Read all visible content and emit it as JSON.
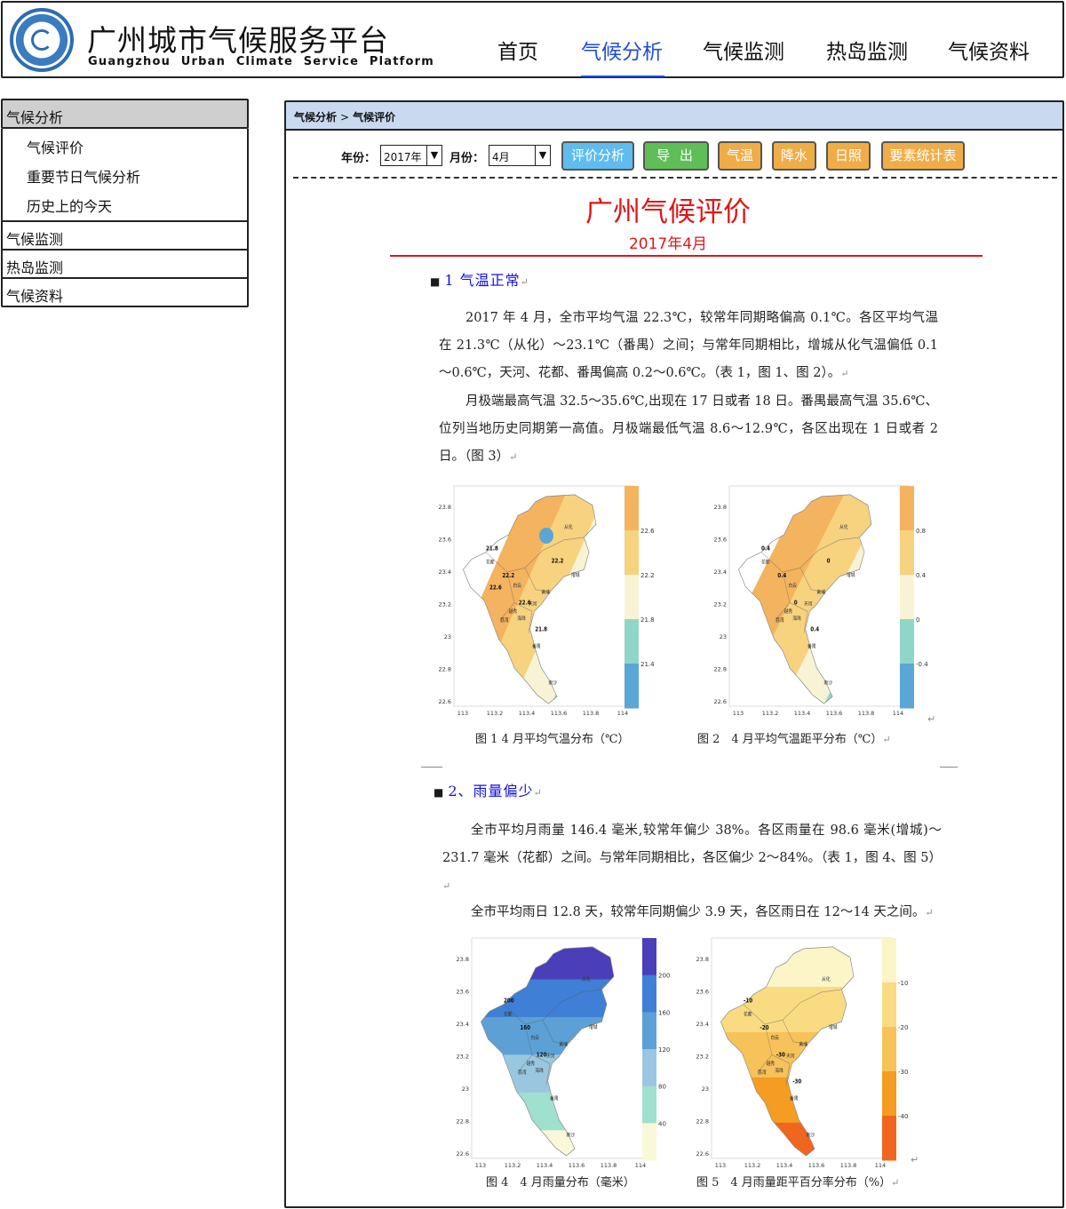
{
  "header": {
    "title": "广州城市气候服务平台",
    "subtitle": "Guangzhou  Urban  Climate  Service  Platform",
    "nav": [
      {
        "label": "首页"
      },
      {
        "label": "气候分析"
      },
      {
        "label": "气候监测"
      },
      {
        "label": "热岛监测"
      },
      {
        "label": "气候资料"
      }
    ]
  },
  "sidebar": {
    "groups": [
      {
        "label": "气候分析",
        "subs": [
          {
            "label": "气候评价"
          },
          {
            "label": "重要节日气候分析"
          },
          {
            "label": "历史上的今天"
          }
        ]
      },
      {
        "label": "气候监测"
      },
      {
        "label": "热岛监测"
      },
      {
        "label": "气候资料"
      }
    ]
  },
  "main": {
    "breadcrumb": {
      "first": "气候分析",
      "sep": ">",
      "second": "气候评价"
    },
    "toolbar": {
      "year_label": "年份：",
      "year_value": "2017年",
      "month_label": "月份：",
      "month_value": "4月",
      "buttons": [
        "评价分析",
        "导 出",
        "气温",
        "降水",
        "日照",
        "要素统计表"
      ]
    },
    "doc": {
      "title": "广州气候评价",
      "date": "2017年4月",
      "sec1": {
        "head": "1 气温正常",
        "p1": "2017 年 4 月，全市平均气温 22.3℃，较常年同期略偏高 0.1℃。各区平均气温在 21.3℃（从化）～23.1℃（番禺）之间；与常年同期相比，增城从化气温偏低 0.1～0.6℃，天河、花都、番禺偏高 0.2～0.6℃。（表 1，图 1、图 2）。",
        "p2": "月极端最高气温 32.5～35.6℃,出现在 17 日或者 18 日。番禺最高气温 35.6℃、位列当地历史同期第一高值。月极端最低气温 8.6～12.9℃，各区出现在 1 日或者 2 日。（图 3）",
        "fig1_caption": "图 1 4 月平均气温分布（℃）",
        "fig2_caption": "图 2　4 月平均气温距平分布（℃）"
      },
      "sec2": {
        "head": "2、雨量偏少",
        "p1": "全市平均月雨量 146.4 毫米,较常年偏少 38%。各区雨量在 98.6 毫米(增城)～231.7 毫米（花都）之间。与常年同期相比，各区偏少 2～84%。（表 1，图 4、图 5）",
        "p2": "全市平均雨日 12.8 天，较常年同期偏少 3.9 天，各区雨日在 12～14 天之间。",
        "fig4_caption": "图 4　4 月雨量分布（毫米）",
        "fig5_caption": "图 5　4 月雨量距平百分率分布（%）"
      }
    },
    "maps": {
      "lat_ticks": [
        "23.8",
        "23.6",
        "23.4",
        "23.2",
        "23",
        "22.8",
        "22.6"
      ],
      "lon_ticks": [
        "113",
        "113.2",
        "113.4",
        "113.6",
        "113.8",
        "114"
      ],
      "district_labels": [
        "从化",
        "花都",
        "增城",
        "白云",
        "黄埔",
        "天河",
        "越秀",
        "荔湾",
        "海珠",
        "番禺",
        "南沙"
      ],
      "fig1": {
        "legend": [
          "22.6",
          "22.2",
          "21.8",
          "21.4"
        ],
        "colors": [
          "#f4b35e",
          "#f7d27f",
          "#f7f3d4",
          "#8fd6c8",
          "#5aa6d6"
        ],
        "contours": [
          "21.8",
          "22.2",
          "22.6",
          "21.8",
          "22.2",
          "22.6"
        ]
      },
      "fig2": {
        "legend": [
          "0.8",
          "0.4",
          "0",
          "-0.4"
        ],
        "colors": [
          "#f4b35e",
          "#f7d27f",
          "#f7f3d4",
          "#8fd6c8",
          "#5aa6d6"
        ],
        "contours": [
          "0.4",
          "0.4",
          "0",
          "0.4",
          "0"
        ]
      },
      "fig4": {
        "legend": [
          "200",
          "160",
          "120",
          "80",
          "40"
        ],
        "colors": [
          "#4a3fb8",
          "#3f7fd6",
          "#5ca0d6",
          "#9ac7e0",
          "#9fe0cf",
          "#fbf8d8"
        ],
        "contours": [
          "200",
          "160",
          "120"
        ]
      },
      "fig5": {
        "legend": [
          "-10",
          "-20",
          "-30",
          "-40"
        ],
        "colors": [
          "#fbf5c8",
          "#f9dc82",
          "#f7c25a",
          "#f59c22",
          "#f0661e"
        ],
        "contours": [
          "-10",
          "-20",
          "-30",
          "-30"
        ]
      }
    }
  }
}
